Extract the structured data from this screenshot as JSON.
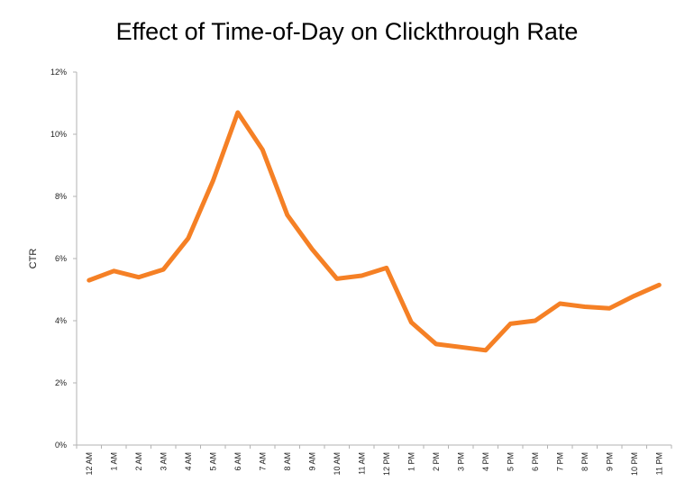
{
  "chart_data": {
    "type": "line",
    "title": "Effect of Time-of-Day on Clickthrough Rate",
    "xlabel": "",
    "ylabel": "CTR",
    "categories": [
      "12 AM",
      "1 AM",
      "2 AM",
      "3 AM",
      "4 AM",
      "5 AM",
      "6 AM",
      "7 AM",
      "8 AM",
      "9 AM",
      "10 AM",
      "11 AM",
      "12 PM",
      "1 PM",
      "2 PM",
      "3 PM",
      "4 PM",
      "5 PM",
      "6 PM",
      "7 PM",
      "8 PM",
      "9 PM",
      "10 PM",
      "11 PM"
    ],
    "series": [
      {
        "values": [
          5.3,
          5.6,
          5.4,
          5.65,
          6.65,
          8.5,
          10.7,
          9.5,
          7.4,
          6.3,
          5.35,
          5.45,
          5.7,
          3.95,
          3.25,
          3.15,
          3.05,
          3.9,
          4.0,
          4.55,
          4.45,
          4.4,
          4.8,
          5.15
        ]
      }
    ],
    "ylim": [
      0,
      12
    ],
    "yticks": [
      0,
      2,
      4,
      6,
      8,
      10,
      12
    ],
    "ytick_labels": [
      "0%",
      "2%",
      "4%",
      "6%",
      "8%",
      "10%",
      "12%"
    ],
    "grid": false,
    "line_color": "#f58025",
    "axis_color": "#b3b3b3"
  }
}
